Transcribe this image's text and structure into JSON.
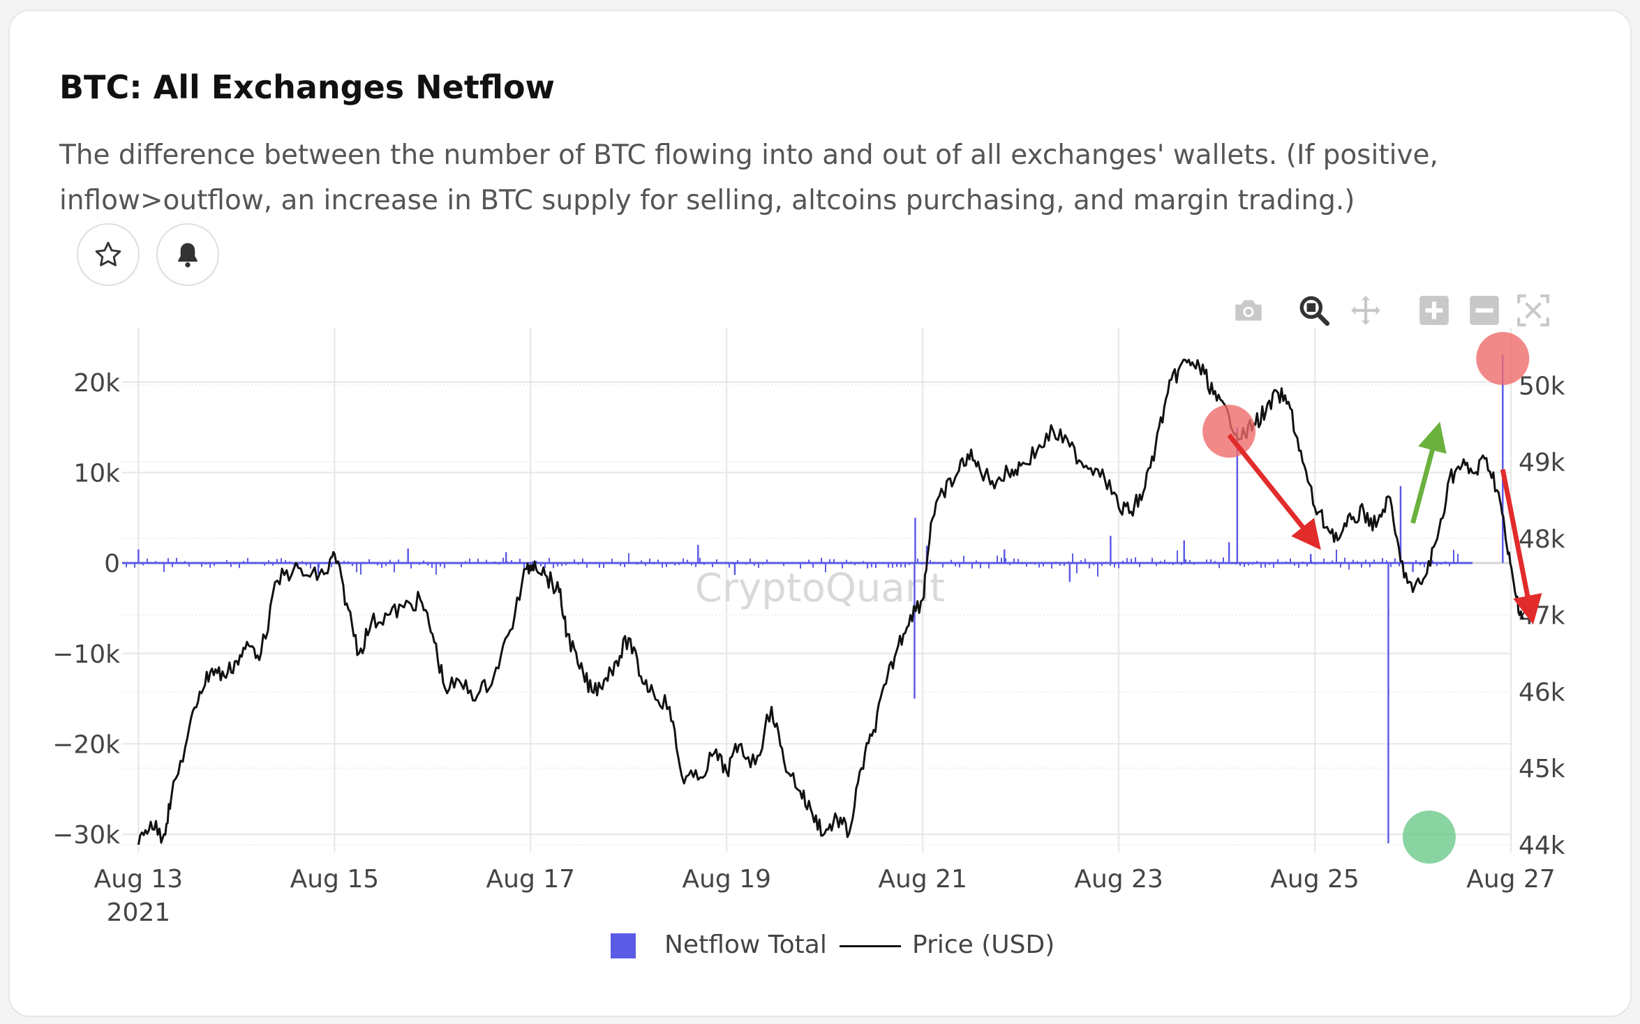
{
  "title": "BTC: All Exchanges Netflow",
  "description": "The difference between the number of BTC flowing into and out of all exchanges' wallets. (If positive, inflow>outflow, an increase in BTC supply for selling, altcoins purchasing, and margin trading.)",
  "buttons": {
    "favorite_icon": "star-icon",
    "alert_icon": "bell-icon"
  },
  "toolbar": [
    "camera-icon",
    "zoom-icon",
    "pan-icon",
    "zoom-in-icon",
    "zoom-out-icon",
    "autoscale-icon"
  ],
  "watermark": "CryptoQuant",
  "legend": {
    "series1": "Netflow Total",
    "series2": "Price (USD)"
  },
  "colors": {
    "netflow": "#5b5be6",
    "price": "#111111",
    "red_marker": "#ef6b6b",
    "green_marker": "#6cc98a",
    "arrow_red": "#e22b2b",
    "arrow_green": "#6bb13d"
  },
  "chart_data": {
    "type": "line",
    "x_ticks": [
      {
        "date": "2021-08-13",
        "label": "Aug 13",
        "sublabel": "2021"
      },
      {
        "date": "2021-08-15",
        "label": "Aug 15"
      },
      {
        "date": "2021-08-17",
        "label": "Aug 17"
      },
      {
        "date": "2021-08-19",
        "label": "Aug 19"
      },
      {
        "date": "2021-08-21",
        "label": "Aug 21"
      },
      {
        "date": "2021-08-23",
        "label": "Aug 23"
      },
      {
        "date": "2021-08-25",
        "label": "Aug 25"
      },
      {
        "date": "2021-08-27",
        "label": "Aug 27"
      }
    ],
    "xlim": [
      "2021-08-12 20:00",
      "2021-08-27 00:00"
    ],
    "y_left": {
      "ticks": [
        20000,
        10000,
        0,
        -10000,
        -20000,
        -30000
      ],
      "tick_labels": [
        "20k",
        "10k",
        "0",
        "−10k",
        "−20k",
        "−30k"
      ],
      "range": [
        -32000,
        26000
      ]
    },
    "y_right": {
      "ticks": [
        50000,
        49000,
        48000,
        47000,
        46000,
        45000,
        44000
      ],
      "tick_labels": [
        "50k",
        "49k",
        "48k",
        "47k",
        "46k",
        "45k",
        "44k"
      ],
      "range": [
        43900,
        50750
      ]
    },
    "grid": true,
    "legend_position": "bottom-center",
    "series": [
      {
        "name": "Price (USD)",
        "axis": "right",
        "points": [
          [
            "2021-08-13 00:00",
            44000
          ],
          [
            "2021-08-13 03:00",
            44300
          ],
          [
            "2021-08-13 06:00",
            44100
          ],
          [
            "2021-08-13 08:00",
            44600
          ],
          [
            "2021-08-13 12:00",
            45400
          ],
          [
            "2021-08-13 15:00",
            46000
          ],
          [
            "2021-08-13 18:00",
            46300
          ],
          [
            "2021-08-13 21:00",
            46200
          ],
          [
            "2021-08-14 00:00",
            46400
          ],
          [
            "2021-08-14 03:00",
            46600
          ],
          [
            "2021-08-14 06:00",
            46500
          ],
          [
            "2021-08-14 10:00",
            47450
          ],
          [
            "2021-08-14 14:00",
            47600
          ],
          [
            "2021-08-14 18:00",
            47500
          ],
          [
            "2021-08-14 22:00",
            47550
          ],
          [
            "2021-08-15 00:00",
            47800
          ],
          [
            "2021-08-15 03:00",
            47150
          ],
          [
            "2021-08-15 06:00",
            46500
          ],
          [
            "2021-08-15 09:00",
            46900
          ],
          [
            "2021-08-15 13:00",
            47000
          ],
          [
            "2021-08-15 17:00",
            47100
          ],
          [
            "2021-08-15 21:00",
            47200
          ],
          [
            "2021-08-16 00:00",
            46750
          ],
          [
            "2021-08-16 03:00",
            46050
          ],
          [
            "2021-08-16 07:00",
            46100
          ],
          [
            "2021-08-16 11:00",
            45950
          ],
          [
            "2021-08-16 15:00",
            46200
          ],
          [
            "2021-08-16 19:00",
            46800
          ],
          [
            "2021-08-16 23:00",
            47600
          ],
          [
            "2021-08-17 01:00",
            47700
          ],
          [
            "2021-08-17 04:00",
            47500
          ],
          [
            "2021-08-17 07:00",
            47300
          ],
          [
            "2021-08-17 09:00",
            46750
          ],
          [
            "2021-08-17 12:00",
            46300
          ],
          [
            "2021-08-17 15:00",
            46000
          ],
          [
            "2021-08-17 18:00",
            46150
          ],
          [
            "2021-08-17 21:00",
            46400
          ],
          [
            "2021-08-18 00:00",
            46700
          ],
          [
            "2021-08-18 03:00",
            46200
          ],
          [
            "2021-08-18 06:00",
            46000
          ],
          [
            "2021-08-18 10:00",
            45800
          ],
          [
            "2021-08-18 13:00",
            44900
          ],
          [
            "2021-08-18 17:00",
            44850
          ],
          [
            "2021-08-18 21:00",
            45200
          ],
          [
            "2021-08-19 00:00",
            44950
          ],
          [
            "2021-08-19 03:00",
            45300
          ],
          [
            "2021-08-19 07:00",
            45050
          ],
          [
            "2021-08-19 11:00",
            45800
          ],
          [
            "2021-08-19 14:00",
            45100
          ],
          [
            "2021-08-19 18:00",
            44700
          ],
          [
            "2021-08-19 21:00",
            44400
          ],
          [
            "2021-08-20 00:00",
            44150
          ],
          [
            "2021-08-20 03:00",
            44350
          ],
          [
            "2021-08-20 06:00",
            44150
          ],
          [
            "2021-08-20 09:00",
            45000
          ],
          [
            "2021-08-20 12:00",
            45500
          ],
          [
            "2021-08-20 15:00",
            46100
          ],
          [
            "2021-08-20 18:00",
            46600
          ],
          [
            "2021-08-20 21:00",
            47000
          ],
          [
            "2021-08-21 00:00",
            47200
          ],
          [
            "2021-08-21 02:00",
            48200
          ],
          [
            "2021-08-21 05:00",
            48600
          ],
          [
            "2021-08-21 08:00",
            48800
          ],
          [
            "2021-08-21 11:00",
            49100
          ],
          [
            "2021-08-21 14:00",
            48900
          ],
          [
            "2021-08-21 17:00",
            48750
          ],
          [
            "2021-08-21 21:00",
            48850
          ],
          [
            "2021-08-22 00:00",
            48950
          ],
          [
            "2021-08-22 04:00",
            49150
          ],
          [
            "2021-08-22 08:00",
            49400
          ],
          [
            "2021-08-22 12:00",
            49200
          ],
          [
            "2021-08-22 16:00",
            48950
          ],
          [
            "2021-08-22 20:00",
            48900
          ],
          [
            "2021-08-23 00:00",
            48400
          ],
          [
            "2021-08-23 03:00",
            48350
          ],
          [
            "2021-08-23 06:00",
            48600
          ],
          [
            "2021-08-23 09:00",
            49200
          ],
          [
            "2021-08-23 12:00",
            49900
          ],
          [
            "2021-08-23 15:00",
            50250
          ],
          [
            "2021-08-23 18:00",
            50300
          ],
          [
            "2021-08-23 21:00",
            50150
          ],
          [
            "2021-08-24 00:00",
            49800
          ],
          [
            "2021-08-24 03:00",
            49600
          ],
          [
            "2021-08-24 06:00",
            49300
          ],
          [
            "2021-08-24 09:00",
            49500
          ],
          [
            "2021-08-24 12:00",
            49650
          ],
          [
            "2021-08-24 15:00",
            49900
          ],
          [
            "2021-08-24 18:00",
            49700
          ],
          [
            "2021-08-24 21:00",
            49000
          ],
          [
            "2021-08-25 00:00",
            48400
          ],
          [
            "2021-08-25 03:00",
            48150
          ],
          [
            "2021-08-25 06:00",
            48000
          ],
          [
            "2021-08-25 09:00",
            48250
          ],
          [
            "2021-08-25 12:00",
            48350
          ],
          [
            "2021-08-25 15:00",
            48150
          ],
          [
            "2021-08-25 18:00",
            48550
          ],
          [
            "2021-08-25 21:00",
            47700
          ],
          [
            "2021-08-26 00:00",
            47300
          ],
          [
            "2021-08-26 03:00",
            47500
          ],
          [
            "2021-08-26 06:00",
            48000
          ],
          [
            "2021-08-26 09:00",
            48800
          ],
          [
            "2021-08-26 12:00",
            48950
          ],
          [
            "2021-08-26 15:00",
            48850
          ],
          [
            "2021-08-26 18:00",
            49050
          ],
          [
            "2021-08-26 21:00",
            48600
          ],
          [
            "2021-08-26 23:00",
            47900
          ],
          [
            "2021-08-27 01:00",
            47300
          ],
          [
            "2021-08-27 03:00",
            46950
          ]
        ]
      },
      {
        "name": "Netflow Total",
        "axis": "left",
        "type": "bar",
        "spikes": [
          [
            "2021-08-13 00:00",
            1500
          ],
          [
            "2021-08-14 20:00",
            -1200
          ],
          [
            "2021-08-15 18:00",
            1600
          ],
          [
            "2021-08-16 18:00",
            1200
          ],
          [
            "2021-08-18 17:00",
            2000
          ],
          [
            "2021-08-19 02:00",
            -1300
          ],
          [
            "2021-08-20 22:00",
            -15000
          ],
          [
            "2021-08-20 22:10",
            5000
          ],
          [
            "2021-08-21 01:00",
            1900
          ],
          [
            "2021-08-21 20:00",
            1500
          ],
          [
            "2021-08-22 12:00",
            -2100
          ],
          [
            "2021-08-22 22:00",
            3000
          ],
          [
            "2021-08-23 16:00",
            2500
          ],
          [
            "2021-08-24 05:00",
            15000
          ],
          [
            "2021-08-24 03:00",
            2300
          ],
          [
            "2021-08-24 23:00",
            1000
          ],
          [
            "2021-08-25 21:00",
            8500
          ],
          [
            "2021-08-25 18:00",
            -31000
          ],
          [
            "2021-08-26 22:00",
            23000
          ],
          [
            "2021-08-26 00:00",
            -1000
          ]
        ]
      }
    ],
    "annotations": [
      {
        "type": "circle",
        "color": "red",
        "date": "2021-08-24 03:00",
        "value": 49400
      },
      {
        "type": "circle",
        "color": "red",
        "date": "2021-08-26 22:00",
        "value": 50350
      },
      {
        "type": "circle",
        "color": "green",
        "date": "2021-08-26 04:00",
        "value": 44100
      },
      {
        "type": "arrow",
        "color": "red",
        "from": [
          "2021-08-24 03:00",
          49350
        ],
        "to": [
          "2021-08-25 00:00",
          47950
        ]
      },
      {
        "type": "arrow",
        "color": "green",
        "from": [
          "2021-08-26 00:00",
          48200
        ],
        "to": [
          "2021-08-26 06:00",
          49400
        ]
      },
      {
        "type": "arrow",
        "color": "red",
        "from": [
          "2021-08-26 22:00",
          48900
        ],
        "to": [
          "2021-08-27 05:00",
          47000
        ]
      }
    ]
  }
}
